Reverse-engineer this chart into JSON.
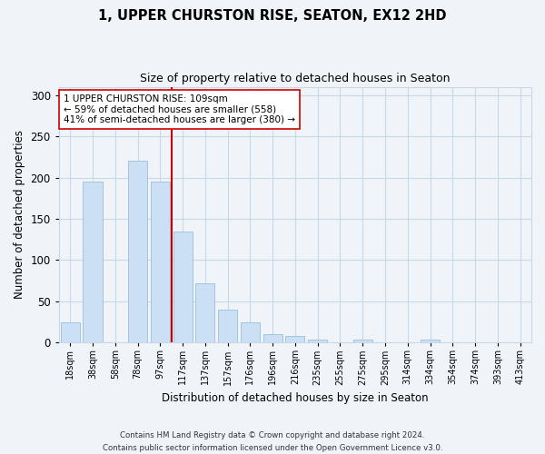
{
  "title": "1, UPPER CHURSTON RISE, SEATON, EX12 2HD",
  "subtitle": "Size of property relative to detached houses in Seaton",
  "xlabel": "Distribution of detached houses by size in Seaton",
  "ylabel": "Number of detached properties",
  "bar_color": "#cce0f5",
  "bar_edge_color": "#9bbfd9",
  "categories": [
    "18sqm",
    "38sqm",
    "58sqm",
    "78sqm",
    "97sqm",
    "117sqm",
    "137sqm",
    "157sqm",
    "176sqm",
    "196sqm",
    "216sqm",
    "235sqm",
    "255sqm",
    "275sqm",
    "295sqm",
    "314sqm",
    "334sqm",
    "354sqm",
    "374sqm",
    "393sqm",
    "413sqm"
  ],
  "values": [
    24,
    195,
    0,
    220,
    195,
    135,
    72,
    40,
    25,
    10,
    8,
    4,
    0,
    3,
    0,
    0,
    3,
    0,
    0,
    0,
    0
  ],
  "ylim": [
    0,
    310
  ],
  "yticks": [
    0,
    50,
    100,
    150,
    200,
    250,
    300
  ],
  "vline_x": 4.5,
  "vline_color": "#cc0000",
  "annotation_text": "1 UPPER CHURSTON RISE: 109sqm\n← 59% of detached houses are smaller (558)\n41% of semi-detached houses are larger (380) →",
  "annotation_box_color": "white",
  "annotation_box_edge": "#cc0000",
  "footer_line1": "Contains HM Land Registry data © Crown copyright and database right 2024.",
  "footer_line2": "Contains public sector information licensed under the Open Government Licence v3.0.",
  "bg_color": "#f0f4f8",
  "grid_color": "#c8d8e8"
}
